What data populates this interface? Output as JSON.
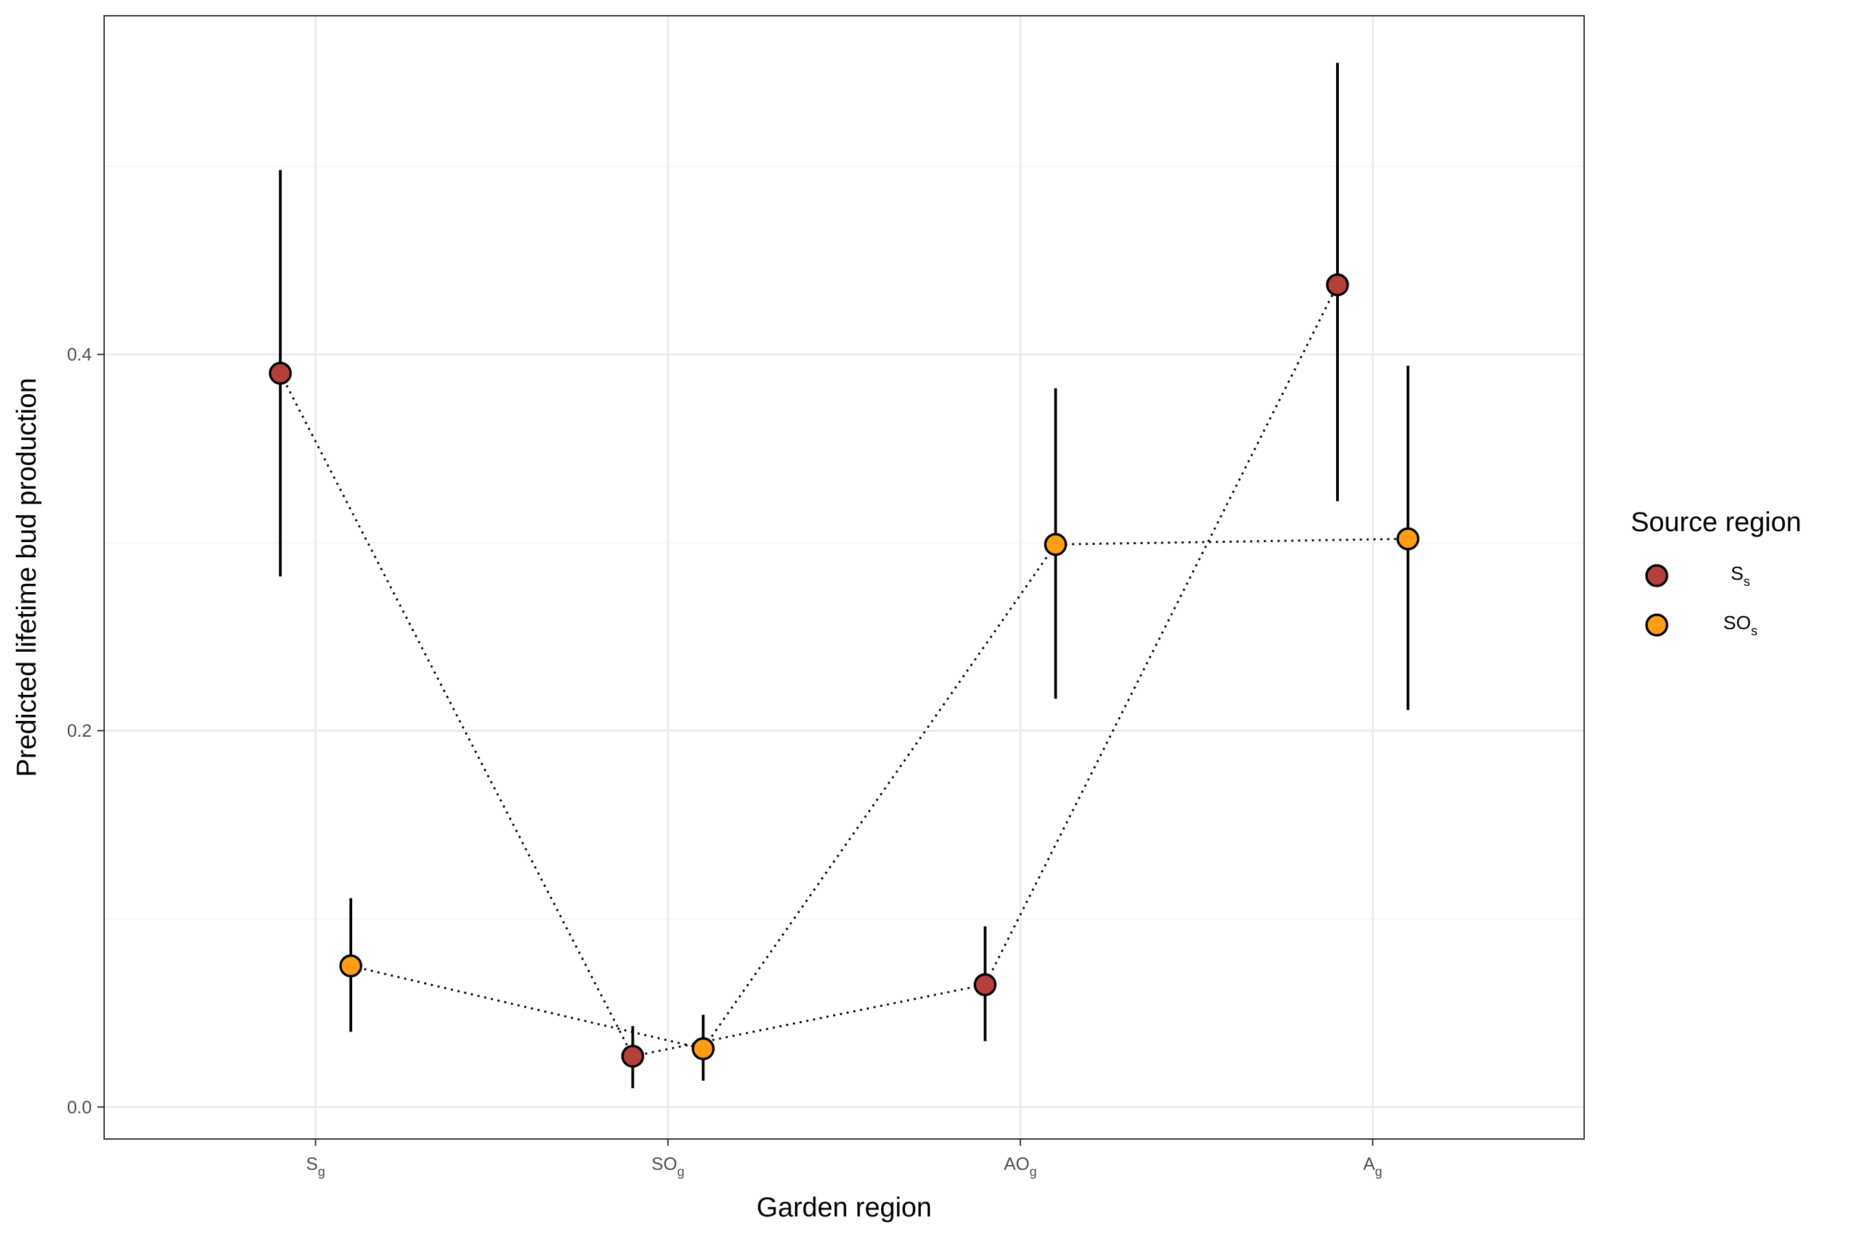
{
  "chart_data": {
    "type": "scatter",
    "title": "",
    "xlabel": "Garden region",
    "ylabel": "Predicted lifetime bud production",
    "categories": [
      {
        "base": "S",
        "sub": "g"
      },
      {
        "base": "SO",
        "sub": "g"
      },
      {
        "base": "AO",
        "sub": "g"
      },
      {
        "base": "A",
        "sub": "g"
      }
    ],
    "ylim": [
      -0.017,
      0.58
    ],
    "yticks": [
      {
        "value": 0.0,
        "label": "0.0"
      },
      {
        "value": 0.2,
        "label": "0.2"
      },
      {
        "value": 0.4,
        "label": "0.4"
      }
    ],
    "grid": true,
    "legend": {
      "title": "Source region",
      "position": "right"
    },
    "series": [
      {
        "name": {
          "base": "S",
          "sub": "s"
        },
        "color": "#B5403A",
        "offset": -0.1,
        "values": [
          0.39,
          0.027,
          0.065,
          0.437
        ],
        "lower": [
          0.282,
          0.01,
          0.035,
          0.322
        ],
        "upper": [
          0.498,
          0.043,
          0.096,
          0.555
        ]
      },
      {
        "name": {
          "base": "SO",
          "sub": "s"
        },
        "color": "#FF9E14",
        "offset": 0.1,
        "values": [
          0.075,
          0.031,
          0.299,
          0.302
        ],
        "lower": [
          0.04,
          0.014,
          0.217,
          0.211
        ],
        "upper": [
          0.111,
          0.049,
          0.382,
          0.394
        ]
      }
    ],
    "line_style": "dotted",
    "error_bar_color": "#000000",
    "point_edge_color": "#000000",
    "panel_border_color": "#333333",
    "grid_major_color": "#ebebeb",
    "grid_minor_color": "#f2f2f2"
  }
}
